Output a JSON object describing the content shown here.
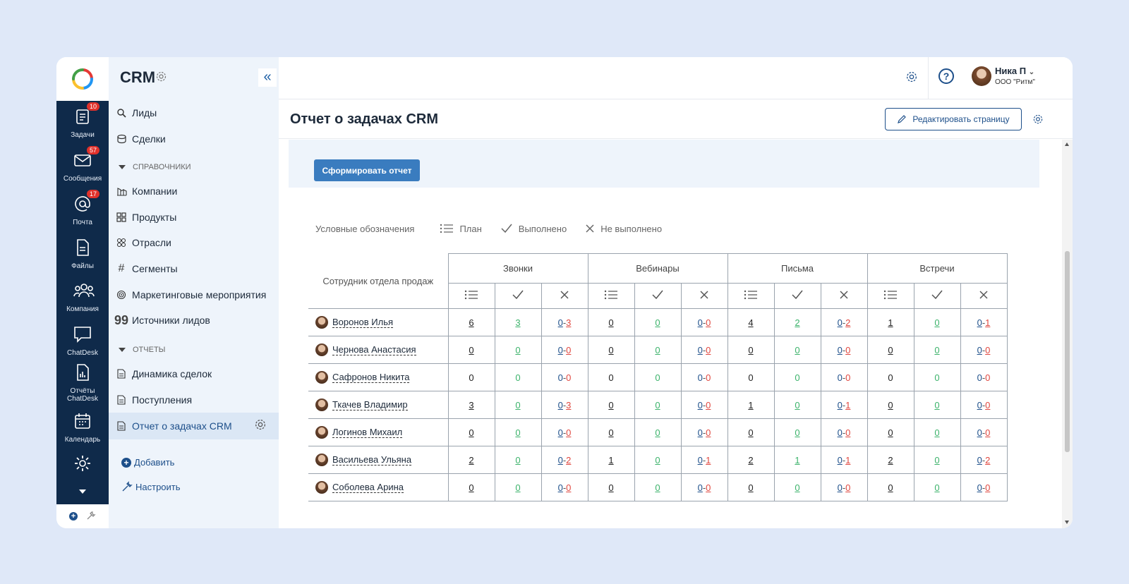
{
  "sidebar_rail": {
    "items": [
      {
        "label": "Задачи",
        "badge": "10",
        "icon": "tasks-icon"
      },
      {
        "label": "Сообщения",
        "badge": "57",
        "icon": "mail-icon"
      },
      {
        "label": "Почта",
        "badge": "17",
        "icon": "at-icon"
      },
      {
        "label": "Файлы",
        "badge": "",
        "icon": "file-icon"
      },
      {
        "label": "Компания",
        "badge": "",
        "icon": "people-icon"
      },
      {
        "label": "ChatDesk",
        "badge": "",
        "icon": "chat-icon"
      },
      {
        "label": "Отчёты ChatDesk",
        "badge": "",
        "icon": "report-icon"
      },
      {
        "label": "Календарь",
        "badge": "",
        "icon": "calendar-icon"
      }
    ]
  },
  "nav": {
    "title": "CRM",
    "items": [
      {
        "label": "Лиды",
        "icon": "search-leads-icon"
      },
      {
        "label": "Сделки",
        "icon": "coins-icon"
      }
    ],
    "section_refs": "СПРАВОЧНИКИ",
    "ref_items": [
      {
        "label": "Компании",
        "icon": "buildings-icon"
      },
      {
        "label": "Продукты",
        "icon": "grid-icon"
      },
      {
        "label": "Отрасли",
        "icon": "industry-icon"
      },
      {
        "label": "Сегменты",
        "icon": "hash-icon"
      },
      {
        "label": "Маркетинговые мероприятия",
        "icon": "target-icon"
      },
      {
        "label": "Источники лидов",
        "icon": "quote-icon"
      }
    ],
    "section_reports": "ОТЧЕТЫ",
    "report_items": [
      {
        "label": "Динамика сделок",
        "icon": "doc-icon"
      },
      {
        "label": "Поступления",
        "icon": "doc-icon"
      },
      {
        "label": "Отчет о задачах CRM",
        "icon": "doc-icon"
      }
    ],
    "add_label": "Добавить",
    "configure_label": "Настроить"
  },
  "topbar": {
    "user_name": "Ника П",
    "user_org": "ООО \"Ритм\""
  },
  "page": {
    "title": "Отчет о задачах CRM",
    "edit_button": "Редактировать страницу",
    "generate_button": "Сформировать отчет"
  },
  "legend": {
    "title": "Условные обозначения",
    "plan": "План",
    "done": "Выполнено",
    "not_done": "Не выполнено"
  },
  "table": {
    "employee_header": "Сотрудник отдела продаж",
    "groups": [
      "Звонки",
      "Вебинары",
      "Письма",
      "Встречи"
    ],
    "rows": [
      {
        "name": "Воронов Илья",
        "cells": [
          [
            "6",
            "3",
            "0",
            "3"
          ],
          [
            "0",
            "0",
            "0",
            "0"
          ],
          [
            "4",
            "2",
            "0",
            "2"
          ],
          [
            "1",
            "0",
            "0",
            "1"
          ]
        ],
        "underline": true
      },
      {
        "name": "Чернова Анастасия",
        "cells": [
          [
            "0",
            "0",
            "0",
            "0"
          ],
          [
            "0",
            "0",
            "0",
            "0"
          ],
          [
            "0",
            "0",
            "0",
            "0"
          ],
          [
            "0",
            "0",
            "0",
            "0"
          ]
        ],
        "underline": true
      },
      {
        "name": "Сафронов Никита",
        "cells": [
          [
            "0",
            "0",
            "0",
            "0"
          ],
          [
            "0",
            "0",
            "0",
            "0"
          ],
          [
            "0",
            "0",
            "0",
            "0"
          ],
          [
            "0",
            "0",
            "0",
            "0"
          ]
        ],
        "underline": false
      },
      {
        "name": "Ткачев Владимир",
        "cells": [
          [
            "3",
            "0",
            "0",
            "3"
          ],
          [
            "0",
            "0",
            "0",
            "0"
          ],
          [
            "1",
            "0",
            "0",
            "1"
          ],
          [
            "0",
            "0",
            "0",
            "0"
          ]
        ],
        "underline": true
      },
      {
        "name": "Логинов Михаил",
        "cells": [
          [
            "0",
            "0",
            "0",
            "0"
          ],
          [
            "0",
            "0",
            "0",
            "0"
          ],
          [
            "0",
            "0",
            "0",
            "0"
          ],
          [
            "0",
            "0",
            "0",
            "0"
          ]
        ],
        "underline": true
      },
      {
        "name": "Васильева Ульяна",
        "cells": [
          [
            "2",
            "0",
            "0",
            "2"
          ],
          [
            "1",
            "0",
            "0",
            "1"
          ],
          [
            "2",
            "1",
            "0",
            "1"
          ],
          [
            "2",
            "0",
            "0",
            "2"
          ]
        ],
        "underline": true
      },
      {
        "name": "Соболева Арина",
        "cells": [
          [
            "0",
            "0",
            "0",
            "0"
          ],
          [
            "0",
            "0",
            "0",
            "0"
          ],
          [
            "0",
            "0",
            "0",
            "0"
          ],
          [
            "0",
            "0",
            "0",
            "0"
          ]
        ],
        "underline": true
      }
    ]
  },
  "colors": {
    "rail": "#0f2a4a",
    "accent": "#1d4f8a",
    "button": "#3a7cbf",
    "done": "#3cb36b",
    "notdone": "#e0473f",
    "badge": "#e0312b"
  }
}
